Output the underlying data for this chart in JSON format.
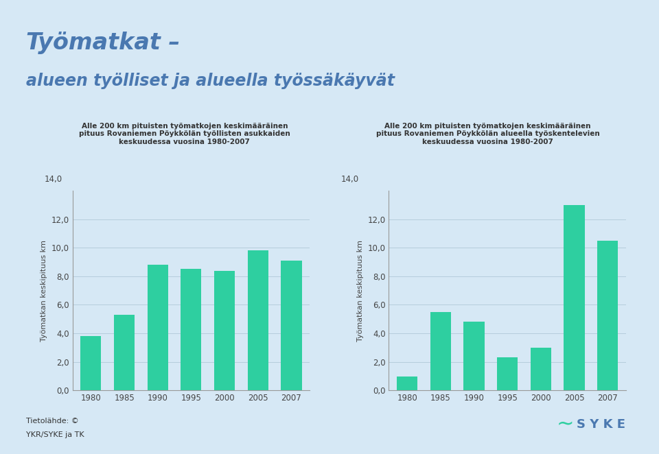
{
  "title_line1": "Työmatkat –",
  "title_line2": "alueen työlliset ja alueella työssäkäyvät",
  "title_color": "#4a78b0",
  "background_color": "#d6e8f5",
  "bar_color": "#2ecfa0",
  "years": [
    1980,
    1985,
    1990,
    1995,
    2000,
    2005,
    2007
  ],
  "values_left": [
    3.8,
    5.3,
    8.8,
    8.5,
    8.4,
    9.8,
    9.1
  ],
  "values_right": [
    1.0,
    5.5,
    4.8,
    2.3,
    3.0,
    13.0,
    10.5
  ],
  "ylabel": "Työmatkan keskipituus km",
  "ylim": [
    0,
    14
  ],
  "yticks": [
    0.0,
    2.0,
    4.0,
    6.0,
    8.0,
    10.0,
    12.0,
    14.0
  ],
  "subtitle_left": "Alle 200 km pituisten työmatkojen keskimääräinen\npituus Rovaniemen Pöykkölän työllisten asukkaiden\nkeskuudessa vuosina 1980-2007",
  "subtitle_right": "Alle 200 km pituisten työmatkojen keskimääräinen\npituus Rovaniemen Pöykkölän alueella työskentelevien\nkeskuudessa vuosina 1980-2007",
  "footer_line1": "Tietolähde: ©",
  "footer_line2": "YKR/SYKE ja TK",
  "grid_color": "#b0c8d8",
  "tick_color": "#444444",
  "spine_color": "#999999"
}
